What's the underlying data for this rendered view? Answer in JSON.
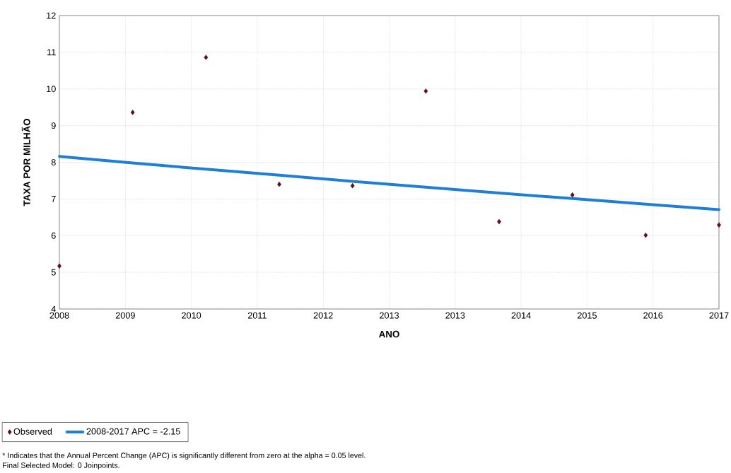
{
  "chart_data": {
    "type": "scatter",
    "xlabel": "ANO",
    "ylabel": "TAXA POR MILHÃO",
    "x": [
      2008,
      2009,
      2010,
      2011,
      2012,
      2013,
      2014,
      2015,
      2016,
      2017
    ],
    "series": [
      {
        "name": "Observed",
        "marker": "diamond",
        "color": "#5c0f14",
        "values": [
          5.17,
          9.36,
          10.86,
          7.4,
          7.36,
          9.94,
          6.38,
          7.11,
          6.01,
          6.29
        ]
      },
      {
        "name": "2008-2017 APC = -2.15",
        "type": "line",
        "marker": "none",
        "color": "#1f7fd6",
        "values": [
          8.16,
          7.98,
          7.81,
          7.65,
          7.48,
          7.32,
          7.16,
          7.01,
          6.86,
          6.71
        ]
      }
    ],
    "xlim": [
      2008,
      2017
    ],
    "ylim": [
      4,
      12
    ],
    "xticks": [
      2008,
      {
        "value": 2008.9,
        "label": "2009"
      },
      {
        "value": 2009.8,
        "label": "2010"
      },
      {
        "value": 2010.7,
        "label": "2011"
      },
      {
        "value": 2011.6,
        "label": "2012"
      },
      {
        "value": 2012.5,
        "label": "2013"
      },
      {
        "value": 2013.4,
        "label": "2013"
      },
      {
        "value": 2014.3,
        "label": "2014"
      },
      {
        "value": 2015.2,
        "label": "2015"
      },
      {
        "value": 2016.1,
        "label": "2016"
      },
      2017
    ],
    "yticks": [
      4,
      5,
      6,
      7,
      8,
      9,
      10,
      11,
      12
    ],
    "grid": true,
    "legend": "bottom left",
    "annotations": [
      "* Indicates that the Annual Percent Change (APC) is significantly different from zero at the alpha = 0.05 level.",
      "Final Selected Model: 0 Joinpoints."
    ]
  }
}
